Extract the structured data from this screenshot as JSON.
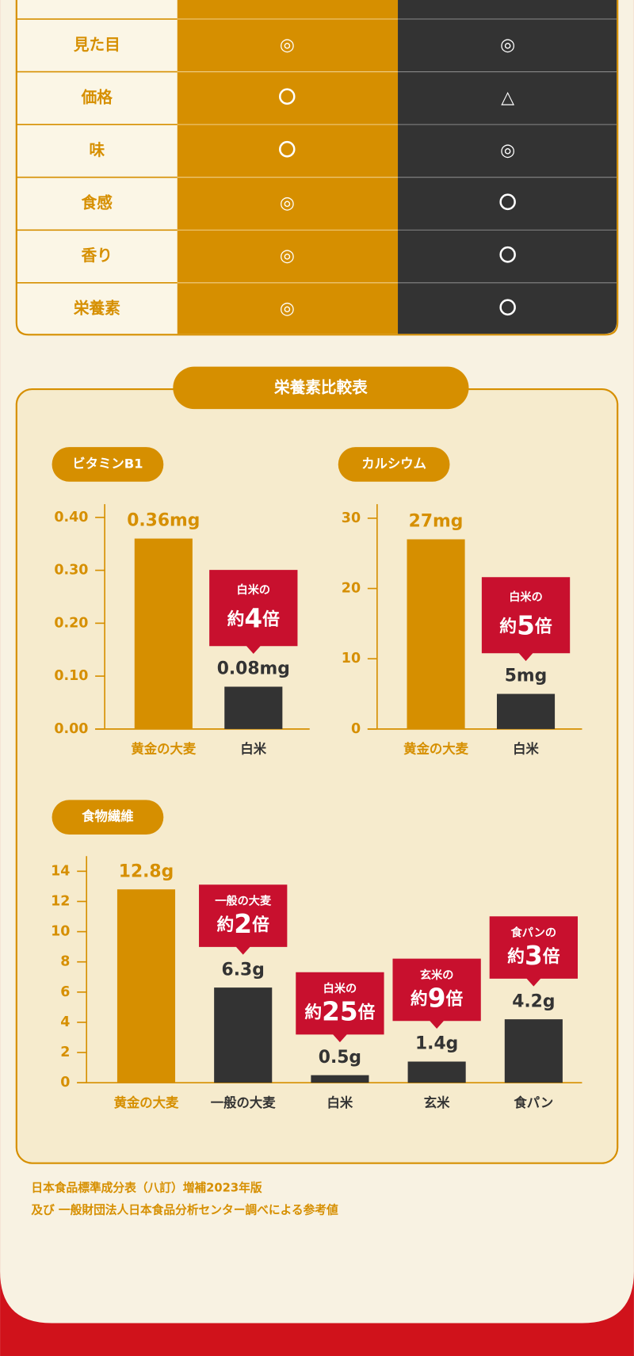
{
  "table": {
    "rows": [
      [
        "見た目",
        "◎",
        "◎"
      ],
      [
        "価格",
        "〇",
        "△"
      ],
      [
        "味",
        "〇",
        "◎"
      ],
      [
        "食感",
        "◎",
        "〇"
      ],
      [
        "香り",
        "◎",
        "〇"
      ],
      [
        "栄養素",
        "◎",
        "〇"
      ]
    ]
  },
  "section_title": "栄養素比較表",
  "chart_data": [
    {
      "type": "bar",
      "title": "ビタミンB1",
      "categories": [
        "黄金の大麦",
        "白米"
      ],
      "values": [
        0.36,
        0.08
      ],
      "value_labels": [
        "0.36mg",
        "0.08mg"
      ],
      "colors": [
        "#d68f00",
        "#333333"
      ],
      "callouts": [
        null,
        [
          "白米の",
          "約4倍"
        ]
      ],
      "ylim": [
        0,
        0.425
      ],
      "yticks": [
        {
          "value": 0,
          "label": "0.00"
        },
        {
          "value": 0.1,
          "label": "0.10"
        },
        {
          "value": 0.2,
          "label": "0.20"
        },
        {
          "value": 0.3,
          "label": "0.30"
        },
        {
          "value": 0.4,
          "label": "0.40"
        }
      ]
    },
    {
      "type": "bar",
      "title": "カルシウム",
      "categories": [
        "黄金の大麦",
        "白米"
      ],
      "values": [
        27,
        5
      ],
      "value_labels": [
        "27mg",
        "5mg"
      ],
      "colors": [
        "#d68f00",
        "#333333"
      ],
      "callouts": [
        null,
        [
          "白米の",
          "約5倍"
        ]
      ],
      "ylim": [
        0,
        32
      ],
      "yticks": [
        0,
        10,
        20,
        30
      ]
    },
    {
      "type": "bar",
      "title": "食物繊維",
      "categories": [
        "黄金の大麦",
        "一般の大麦",
        "白米",
        "玄米",
        "食パン"
      ],
      "values": [
        12.8,
        6.3,
        0.5,
        1.4,
        4.2
      ],
      "value_labels": [
        "12.8g",
        "6.3g",
        "0.5g",
        "1.4g",
        "4.2g"
      ],
      "colors": [
        "#d68f00",
        "#333333",
        "#333333",
        "#333333",
        "#333333"
      ],
      "callouts": [
        null,
        [
          "一般の大麦",
          "約2倍"
        ],
        [
          "白米の",
          "約25倍"
        ],
        [
          "玄米の",
          "約9倍"
        ],
        [
          "食パンの",
          "約3倍"
        ]
      ],
      "ylim": [
        0,
        15
      ],
      "yticks": [
        0,
        2,
        4,
        6,
        8,
        10,
        12,
        14
      ]
    }
  ],
  "footnote": [
    "日本食品標準成分表（八訂）増補2023年版",
    "及び 一般財団法人日本食品分析センター調べによる参考値"
  ]
}
